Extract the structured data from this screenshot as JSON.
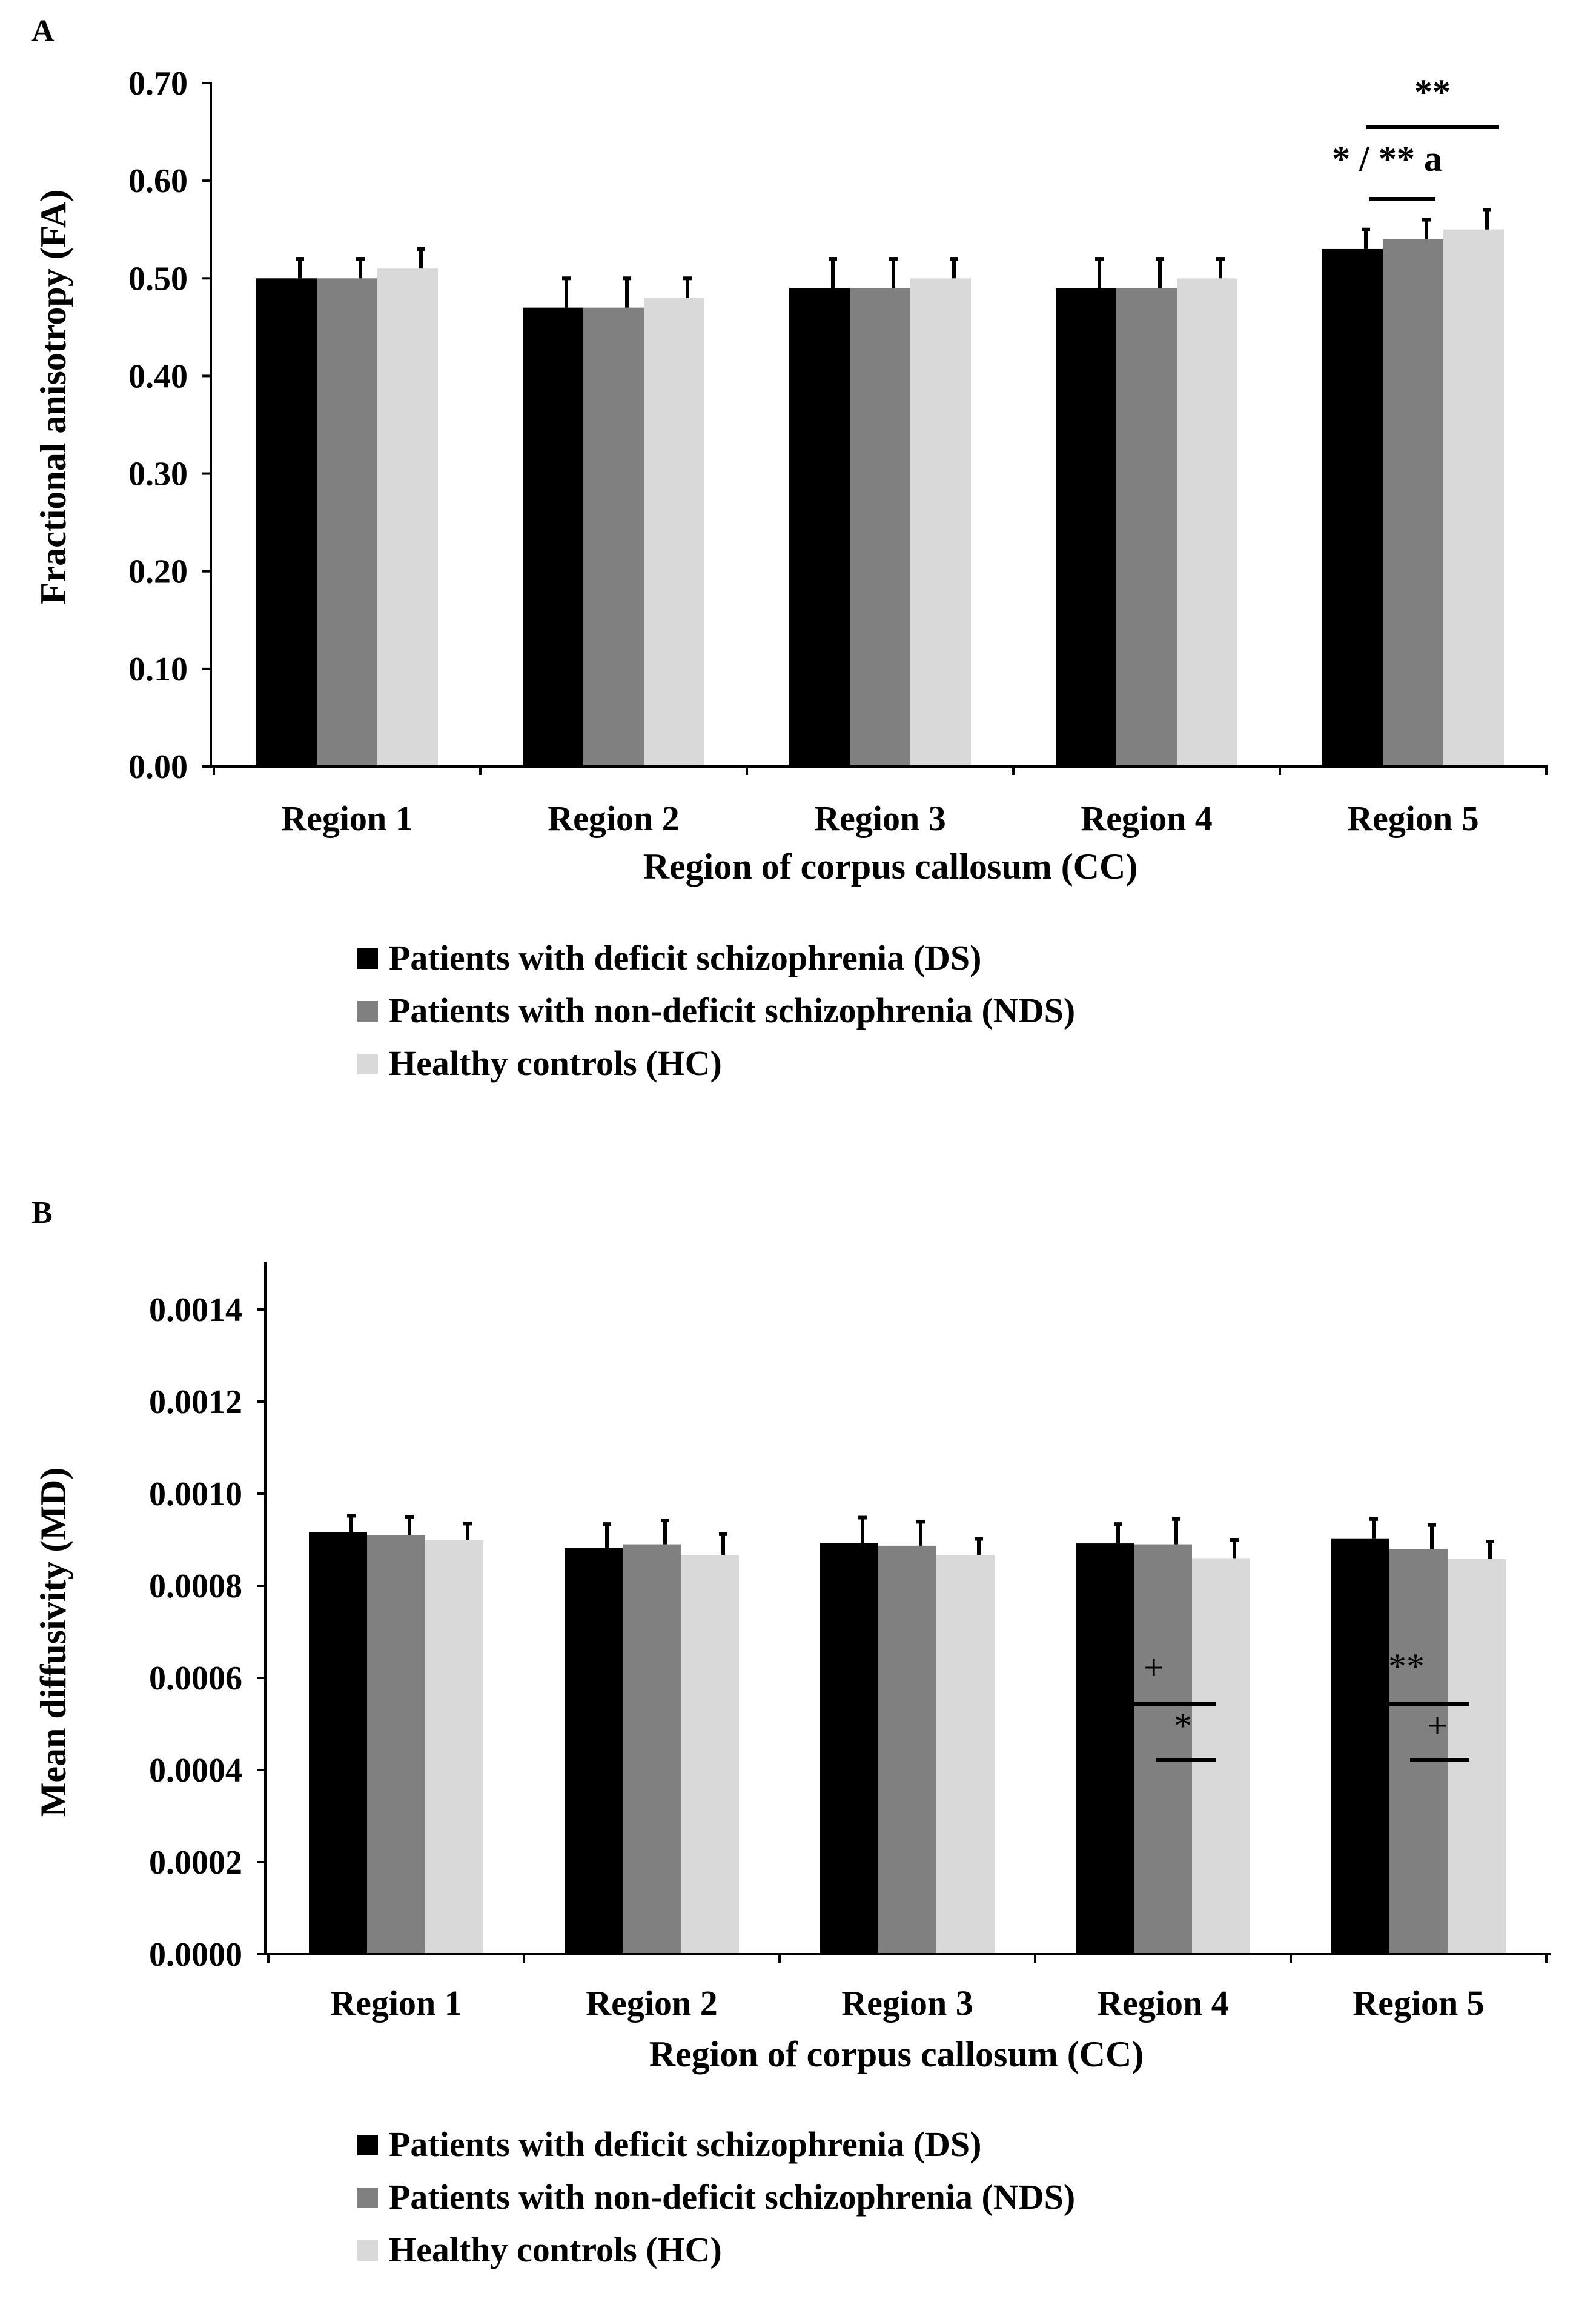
{
  "chart_data": [
    {
      "panel": "A",
      "type": "bar",
      "ylabel": "Fractional anisotropy (FA)",
      "xlabel": "Region of corpus callosum (CC)",
      "categories": [
        "Region 1",
        "Region 2",
        "Region 3",
        "Region 4",
        "Region 5"
      ],
      "ylim": [
        0,
        0.7
      ],
      "yticks": [
        "0.00",
        "0.10",
        "0.20",
        "0.30",
        "0.40",
        "0.50",
        "0.60",
        "0.70"
      ],
      "series": [
        {
          "name": "Patients with deficit schizophrenia (DS)",
          "color": "#000000",
          "values": [
            0.5,
            0.47,
            0.49,
            0.49,
            0.53
          ],
          "errors": [
            0.02,
            0.03,
            0.03,
            0.03,
            0.02
          ]
        },
        {
          "name": "Patients with non-deficit schizophrenia (NDS)",
          "color": "#808080",
          "values": [
            0.5,
            0.47,
            0.49,
            0.49,
            0.54
          ],
          "errors": [
            0.02,
            0.03,
            0.03,
            0.03,
            0.02
          ]
        },
        {
          "name": "Healthy controls (HC)",
          "color": "#d9d9d9",
          "values": [
            0.51,
            0.48,
            0.5,
            0.5,
            0.55
          ],
          "errors": [
            0.02,
            0.02,
            0.02,
            0.02,
            0.02
          ]
        }
      ],
      "annotations": [
        {
          "region": "Region 5",
          "from": "DS",
          "to": "HC",
          "label": "**"
        },
        {
          "region": "Region 5",
          "from": "DS",
          "to": "NDS",
          "label": "* / ** a"
        }
      ]
    },
    {
      "panel": "B",
      "type": "bar",
      "ylabel": "Mean diffusivity (MD)",
      "xlabel": "Region of corpus callosum (CC)",
      "categories": [
        "Region 1",
        "Region 2",
        "Region 3",
        "Region 4",
        "Region 5"
      ],
      "ylim": [
        0,
        0.0015
      ],
      "yticks": [
        "0.0000",
        "0.0002",
        "0.0004",
        "0.0006",
        "0.0008",
        "0.0010",
        "0.0012",
        "0.0014"
      ],
      "series": [
        {
          "name": "Patients with deficit schizophrenia (DS)",
          "color": "#000000",
          "values": [
            0.000917,
            0.000882,
            0.000893,
            0.000892,
            0.000903
          ],
          "errors": [
            3.5e-05,
            5.2e-05,
            5.5e-05,
            4.2e-05,
            4.2e-05
          ]
        },
        {
          "name": "Patients with non-deficit schizophrenia (NDS)",
          "color": "#808080",
          "values": [
            0.00091,
            0.00089,
            0.000887,
            0.00089,
            0.00088
          ],
          "errors": [
            4e-05,
            5.2e-05,
            5.2e-05,
            5.5e-05,
            5.2e-05
          ]
        },
        {
          "name": "Healthy controls (HC)",
          "color": "#d9d9d9",
          "values": [
            0.0009,
            0.000867,
            0.000867,
            0.00086,
            0.000858
          ],
          "errors": [
            3.5e-05,
            4.5e-05,
            3.5e-05,
            4e-05,
            3.8e-05
          ]
        }
      ],
      "annotations": [
        {
          "region": "Region 4",
          "from": "DS",
          "to": "HC",
          "label": "+"
        },
        {
          "region": "Region 4",
          "from": "NDS",
          "to": "HC",
          "label": "*"
        },
        {
          "region": "Region 5",
          "from": "DS",
          "to": "HC",
          "label": "**"
        },
        {
          "region": "Region 5",
          "from": "NDS",
          "to": "HC",
          "label": "+"
        }
      ]
    }
  ]
}
